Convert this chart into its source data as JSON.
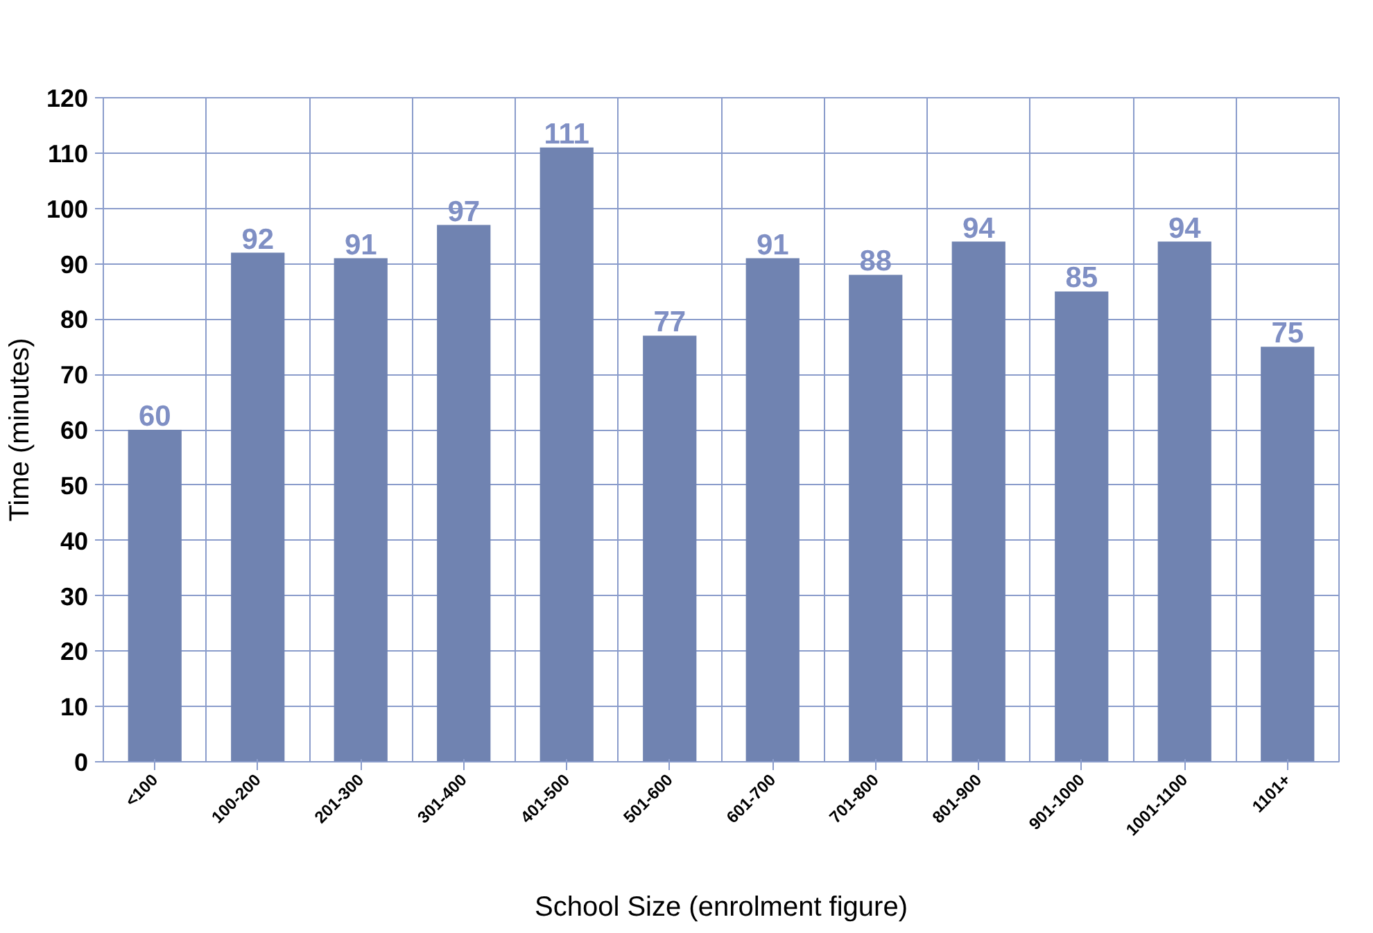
{
  "chart_data": {
    "type": "bar",
    "xlabel": "School Size (enrolment figure)",
    "ylabel": "Time (minutes)",
    "categories": [
      "<100",
      "100-200",
      "201-300",
      "301-400",
      "401-500",
      "501-600",
      "601-700",
      "701-800",
      "801-900",
      "901-1000",
      "1001-1100",
      "1101+"
    ],
    "values": [
      60,
      92,
      91,
      97,
      111,
      77,
      91,
      88,
      94,
      85,
      94,
      75
    ],
    "color": "#7083b1",
    "ylim": [
      0,
      120
    ],
    "yticks": [
      0,
      10,
      20,
      30,
      40,
      50,
      60,
      70,
      80,
      90,
      100,
      110,
      120
    ],
    "grid": true,
    "data_labels": true
  }
}
